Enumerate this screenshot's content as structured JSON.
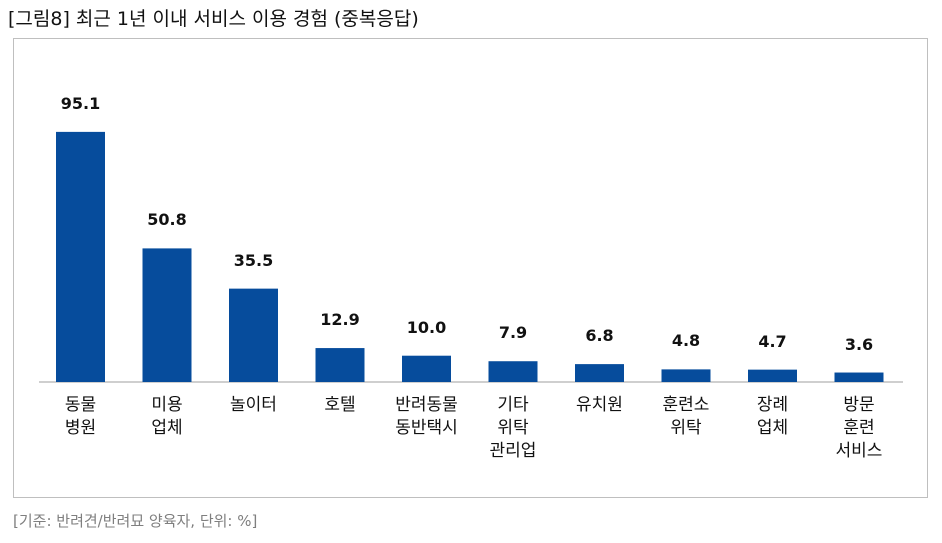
{
  "chart_data": {
    "type": "bar",
    "title": "[그림8] 최근 1년 이내 서비스 이용 경험 (중복응답)",
    "categories": [
      "동물\n병원",
      "미용\n업체",
      "놀이터",
      "호텔",
      "반려동물\n동반택시",
      "기타\n위탁\n관리업",
      "유치원",
      "훈련소\n위탁",
      "장례\n업체",
      "방문\n훈련\n서비스"
    ],
    "values": [
      95.1,
      50.8,
      35.5,
      12.9,
      10.0,
      7.9,
      6.8,
      4.8,
      4.7,
      3.6
    ],
    "value_labels": [
      "95.1",
      "50.8",
      "35.5",
      "12.9",
      "10.0",
      "7.9",
      "6.8",
      "4.8",
      "4.7",
      "3.6"
    ],
    "color": "#064c9c",
    "note": "[기준: 반려견/반려묘 양육자, 단위: %]"
  }
}
